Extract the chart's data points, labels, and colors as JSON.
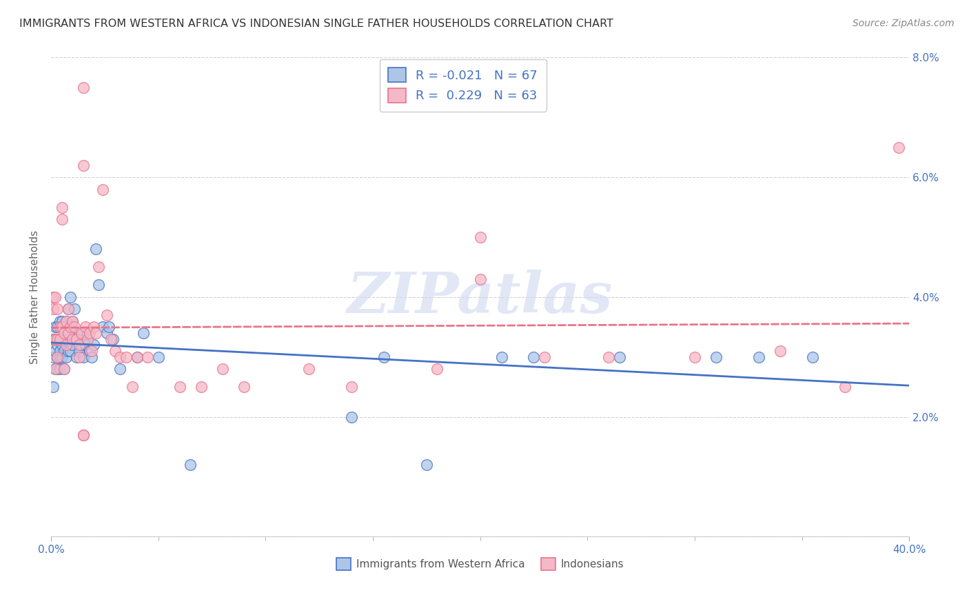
{
  "title": "IMMIGRANTS FROM WESTERN AFRICA VS INDONESIAN SINGLE FATHER HOUSEHOLDS CORRELATION CHART",
  "source": "Source: ZipAtlas.com",
  "ylabel": "Single Father Households",
  "xlim": [
    0.0,
    0.4
  ],
  "ylim": [
    0.0,
    0.08
  ],
  "xtick_label_positions": [
    0.0,
    0.4
  ],
  "xticklabels": [
    "0.0%",
    "40.0%"
  ],
  "xtick_minor_positions": [
    0.05,
    0.1,
    0.15,
    0.2,
    0.25,
    0.3,
    0.35
  ],
  "yticks": [
    0.0,
    0.02,
    0.04,
    0.06,
    0.08
  ],
  "yticklabels": [
    "",
    "2.0%",
    "4.0%",
    "6.0%",
    "8.0%"
  ],
  "legend_r1": "R = -0.021   N = 67",
  "legend_r2": "R =  0.229   N = 63",
  "legend_label1": "Immigrants from Western Africa",
  "legend_label2": "Indonesians",
  "color_blue": "#adc6e8",
  "color_pink": "#f5b8c8",
  "color_blue_line": "#4472c4",
  "color_pink_line": "#e8748a",
  "color_axis_tick": "#4472c4",
  "color_title": "#333333",
  "color_source": "#888888",
  "watermark": "ZIPatlas",
  "watermark_color": "#d0d8f0",
  "blue_x": [
    0.001,
    0.001,
    0.001,
    0.002,
    0.002,
    0.002,
    0.002,
    0.003,
    0.003,
    0.003,
    0.003,
    0.003,
    0.004,
    0.004,
    0.004,
    0.004,
    0.004,
    0.005,
    0.005,
    0.005,
    0.005,
    0.006,
    0.006,
    0.006,
    0.007,
    0.007,
    0.007,
    0.008,
    0.008,
    0.009,
    0.009,
    0.01,
    0.01,
    0.01,
    0.011,
    0.011,
    0.012,
    0.013,
    0.013,
    0.014,
    0.015,
    0.015,
    0.016,
    0.017,
    0.018,
    0.019,
    0.02,
    0.021,
    0.022,
    0.024,
    0.026,
    0.027,
    0.029,
    0.032,
    0.04,
    0.043,
    0.05,
    0.065,
    0.14,
    0.155,
    0.175,
    0.21,
    0.225,
    0.265,
    0.31,
    0.33,
    0.355
  ],
  "blue_y": [
    0.025,
    0.03,
    0.033,
    0.028,
    0.031,
    0.033,
    0.035,
    0.028,
    0.03,
    0.032,
    0.033,
    0.035,
    0.028,
    0.03,
    0.031,
    0.033,
    0.036,
    0.03,
    0.032,
    0.033,
    0.036,
    0.028,
    0.031,
    0.033,
    0.03,
    0.033,
    0.036,
    0.031,
    0.038,
    0.031,
    0.04,
    0.032,
    0.034,
    0.036,
    0.033,
    0.038,
    0.03,
    0.031,
    0.034,
    0.032,
    0.03,
    0.033,
    0.032,
    0.034,
    0.031,
    0.03,
    0.032,
    0.048,
    0.042,
    0.035,
    0.034,
    0.035,
    0.033,
    0.028,
    0.03,
    0.034,
    0.03,
    0.012,
    0.02,
    0.03,
    0.012,
    0.03,
    0.03,
    0.03,
    0.03,
    0.03,
    0.03
  ],
  "pink_x": [
    0.001,
    0.001,
    0.001,
    0.002,
    0.002,
    0.002,
    0.003,
    0.003,
    0.003,
    0.004,
    0.004,
    0.005,
    0.005,
    0.006,
    0.006,
    0.007,
    0.007,
    0.008,
    0.008,
    0.009,
    0.01,
    0.01,
    0.011,
    0.012,
    0.013,
    0.013,
    0.014,
    0.015,
    0.016,
    0.017,
    0.018,
    0.019,
    0.02,
    0.021,
    0.022,
    0.024,
    0.026,
    0.028,
    0.03,
    0.032,
    0.035,
    0.038,
    0.04,
    0.045,
    0.06,
    0.07,
    0.08,
    0.09,
    0.12,
    0.14,
    0.005,
    0.015,
    0.18,
    0.2,
    0.23,
    0.26,
    0.3,
    0.34,
    0.37,
    0.395,
    0.015,
    0.2,
    0.015
  ],
  "pink_y": [
    0.033,
    0.038,
    0.04,
    0.028,
    0.033,
    0.04,
    0.03,
    0.033,
    0.038,
    0.033,
    0.035,
    0.035,
    0.053,
    0.028,
    0.034,
    0.032,
    0.036,
    0.034,
    0.038,
    0.035,
    0.033,
    0.036,
    0.035,
    0.033,
    0.03,
    0.032,
    0.034,
    0.062,
    0.035,
    0.033,
    0.034,
    0.031,
    0.035,
    0.034,
    0.045,
    0.058,
    0.037,
    0.033,
    0.031,
    0.03,
    0.03,
    0.025,
    0.03,
    0.03,
    0.025,
    0.025,
    0.028,
    0.025,
    0.028,
    0.025,
    0.055,
    0.075,
    0.028,
    0.043,
    0.03,
    0.03,
    0.03,
    0.031,
    0.025,
    0.065,
    0.017,
    0.05,
    0.017
  ]
}
